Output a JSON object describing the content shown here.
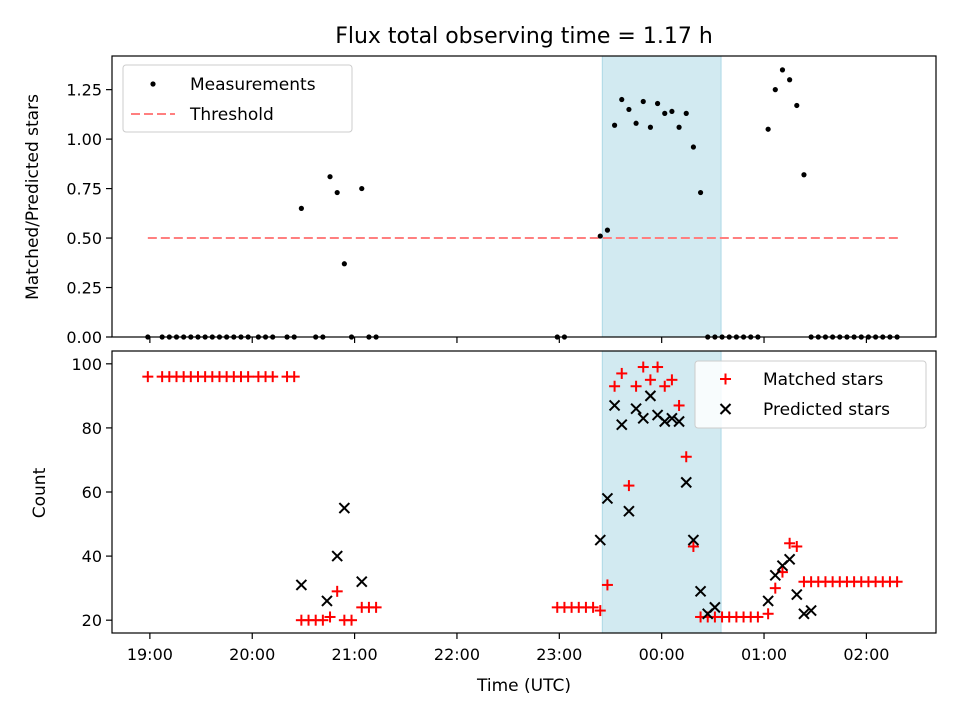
{
  "title": "Flux total observing time = 1.17 h",
  "xlabel": "Time (UTC)",
  "colors": {
    "measurements": "#000000",
    "threshold": "#ff7f7f",
    "matched": "#ff0000",
    "predicted": "#000000",
    "highlight": "#add8e6"
  },
  "chart_data": [
    {
      "type": "scatter",
      "ylabel": "Matched/Predicted stars",
      "xlim_hours": [
        18.63,
        26.68
      ],
      "ylim": [
        0,
        1.42
      ],
      "x_ticks": [],
      "y_ticks": [
        0.0,
        0.25,
        0.5,
        0.75,
        1.0,
        1.25
      ],
      "y_tick_labels": [
        "0.00",
        "0.25",
        "0.50",
        "0.75",
        "1.00",
        "1.25"
      ],
      "highlight_span_hours": [
        23.42,
        24.58
      ],
      "legend": {
        "position": "upper left",
        "entries": [
          {
            "label": "Measurements",
            "marker": "dot"
          },
          {
            "label": "Threshold",
            "marker": "dashed-line"
          }
        ]
      },
      "threshold": {
        "value": 0.5,
        "x_range_hours": [
          18.98,
          26.32
        ]
      },
      "series": [
        {
          "name": "Measurements",
          "marker": "dot",
          "x_hours": [
            18.98,
            19.12,
            19.19,
            19.26,
            19.33,
            19.4,
            19.47,
            19.54,
            19.61,
            19.68,
            19.75,
            19.82,
            19.89,
            19.96,
            20.06,
            20.13,
            20.2,
            20.34,
            20.41,
            20.48,
            20.62,
            20.69,
            20.76,
            20.83,
            20.9,
            20.97,
            21.07,
            21.14,
            21.21,
            22.98,
            23.05,
            23.4,
            23.47,
            23.54,
            23.61,
            23.68,
            23.75,
            23.82,
            23.89,
            23.96,
            24.03,
            24.1,
            24.17,
            24.24,
            24.31,
            24.38,
            24.45,
            24.52,
            24.59,
            24.66,
            24.73,
            24.8,
            24.87,
            24.94,
            25.04,
            25.11,
            25.18,
            25.25,
            25.32,
            25.39,
            25.46,
            25.53,
            25.6,
            25.67,
            25.74,
            25.81,
            25.88,
            25.95,
            26.02,
            26.09,
            26.16,
            26.23,
            26.3
          ],
          "y": [
            0.0,
            0.0,
            0.0,
            0.0,
            0.0,
            0.0,
            0.0,
            0.0,
            0.0,
            0.0,
            0.0,
            0.0,
            0.0,
            0.0,
            0.0,
            0.0,
            0.0,
            0.0,
            0.0,
            0.65,
            0.0,
            0.0,
            0.81,
            0.73,
            0.37,
            0.0,
            0.75,
            0.0,
            0.0,
            0.0,
            0.0,
            0.51,
            0.54,
            1.07,
            1.2,
            1.15,
            1.08,
            1.19,
            1.06,
            1.18,
            1.13,
            1.14,
            1.06,
            1.13,
            0.96,
            0.73,
            0.0,
            0.0,
            0.0,
            0.0,
            0.0,
            0.0,
            0.0,
            0.0,
            1.05,
            1.25,
            1.35,
            1.3,
            1.17,
            0.82,
            0.0,
            0.0,
            0.0,
            0.0,
            0.0,
            0.0,
            0.0,
            0.0,
            0.0,
            0.0,
            0.0,
            0.0,
            0.0
          ]
        }
      ]
    },
    {
      "type": "scatter",
      "ylabel": "Count",
      "xlim_hours": [
        18.63,
        26.68
      ],
      "ylim": [
        16,
        104
      ],
      "x_ticks_hours": [
        19,
        20,
        21,
        22,
        23,
        24,
        25,
        26
      ],
      "x_tick_labels": [
        "19:00",
        "20:00",
        "21:00",
        "22:00",
        "23:00",
        "00:00",
        "01:00",
        "02:00"
      ],
      "y_ticks": [
        20,
        40,
        60,
        80,
        100
      ],
      "y_tick_labels": [
        "20",
        "40",
        "60",
        "80",
        "100"
      ],
      "highlight_span_hours": [
        23.42,
        24.58
      ],
      "legend": {
        "position": "upper right",
        "entries": [
          {
            "label": "Matched stars",
            "marker": "plus"
          },
          {
            "label": "Predicted stars",
            "marker": "x"
          }
        ]
      },
      "series": [
        {
          "name": "Matched stars",
          "marker": "plus",
          "x_hours": [
            18.98,
            19.12,
            19.19,
            19.26,
            19.33,
            19.4,
            19.47,
            19.54,
            19.61,
            19.68,
            19.75,
            19.82,
            19.89,
            19.96,
            20.06,
            20.13,
            20.2,
            20.34,
            20.41,
            20.48,
            20.55,
            20.62,
            20.69,
            20.76,
            20.83,
            20.9,
            20.97,
            21.07,
            21.14,
            21.21,
            22.98,
            23.05,
            23.12,
            23.19,
            23.26,
            23.33,
            23.4,
            23.47,
            23.54,
            23.61,
            23.68,
            23.75,
            23.82,
            23.89,
            23.96,
            24.03,
            24.1,
            24.17,
            24.24,
            24.31,
            24.38,
            24.45,
            24.52,
            24.59,
            24.66,
            24.73,
            24.8,
            24.87,
            24.94,
            25.04,
            25.11,
            25.18,
            25.25,
            25.32,
            25.39,
            25.46,
            25.53,
            25.6,
            25.67,
            25.74,
            25.81,
            25.88,
            25.95,
            26.02,
            26.09,
            26.16,
            26.23,
            26.3
          ],
          "y": [
            96,
            96,
            96,
            96,
            96,
            96,
            96,
            96,
            96,
            96,
            96,
            96,
            96,
            96,
            96,
            96,
            96,
            96,
            96,
            20,
            20,
            20,
            20,
            21,
            29,
            20,
            20,
            24,
            24,
            24,
            24,
            24,
            24,
            24,
            24,
            24,
            23,
            31,
            93,
            97,
            62,
            93,
            99,
            95,
            99,
            93,
            95,
            87,
            71,
            43,
            21,
            21,
            21,
            21,
            21,
            21,
            21,
            21,
            21,
            22,
            30,
            35,
            44,
            43,
            32,
            32,
            32,
            32,
            32,
            32,
            32,
            32,
            32,
            32,
            32,
            32,
            32,
            32
          ]
        },
        {
          "name": "Predicted stars",
          "marker": "x",
          "x_hours": [
            20.48,
            20.73,
            20.83,
            20.9,
            21.07,
            23.4,
            23.47,
            23.54,
            23.61,
            23.68,
            23.75,
            23.82,
            23.89,
            23.96,
            24.03,
            24.1,
            24.17,
            24.24,
            24.31,
            24.38,
            24.45,
            24.52,
            25.04,
            25.11,
            25.18,
            25.25,
            25.32,
            25.39,
            25.46
          ],
          "y": [
            31,
            26,
            40,
            55,
            32,
            45,
            58,
            87,
            81,
            54,
            86,
            83,
            90,
            84,
            82,
            83,
            82,
            63,
            45,
            29,
            22,
            24,
            26,
            34,
            37,
            39,
            28,
            22,
            23
          ]
        }
      ]
    }
  ]
}
